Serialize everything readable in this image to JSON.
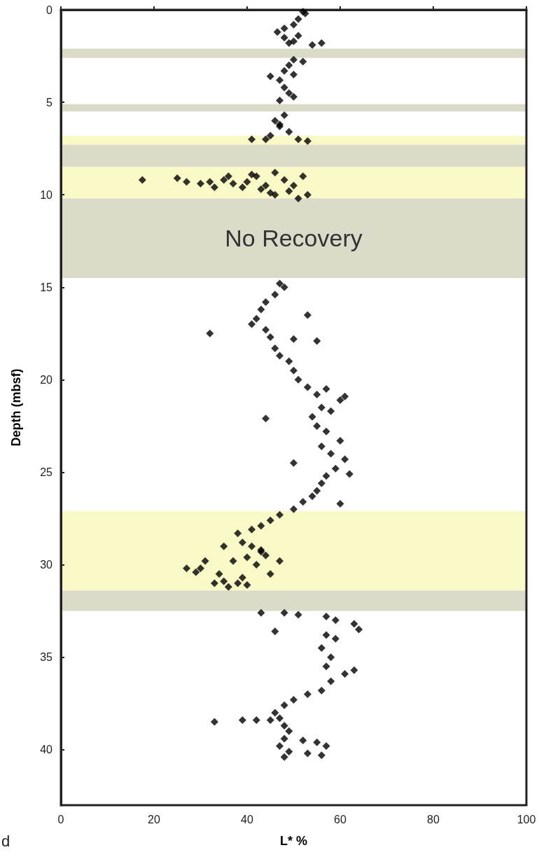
{
  "chart_data": {
    "type": "scatter",
    "xlabel": "L* %",
    "ylabel": "Depth (mbsf)",
    "xlim": [
      0,
      100
    ],
    "xticks": [
      0,
      20,
      40,
      60,
      80,
      100
    ],
    "ylim": [
      43,
      0
    ],
    "yticks": [
      0,
      5,
      10,
      15,
      20,
      25,
      30,
      35,
      40
    ],
    "grid": false,
    "marker": "diamond",
    "annotations": [
      "d"
    ],
    "bands": [
      {
        "axis": "y",
        "from": 2.1,
        "to": 2.6,
        "color": "#dcdac8"
      },
      {
        "axis": "y",
        "from": 5.1,
        "to": 5.5,
        "color": "#dcdac8"
      },
      {
        "axis": "y",
        "from": 6.8,
        "to": 7.3,
        "color": "#fafac8"
      },
      {
        "axis": "y",
        "from": 7.3,
        "to": 8.5,
        "color": "#dcdac8"
      },
      {
        "axis": "y",
        "from": 8.5,
        "to": 10.2,
        "color": "#fafac8"
      },
      {
        "axis": "y",
        "from": 10.2,
        "to": 14.5,
        "color": "#dcdac8",
        "label": "No Recovery"
      },
      {
        "axis": "y",
        "from": 27.1,
        "to": 31.4,
        "color": "#fafac8"
      },
      {
        "axis": "y",
        "from": 31.4,
        "to": 32.5,
        "color": "#dcdac8"
      }
    ],
    "series": [
      {
        "color": "#000000",
        "x": [
          52,
          52.5,
          51,
          50,
          48,
          46.5,
          48,
          50,
          54,
          56,
          51,
          49,
          50,
          49,
          48,
          50,
          45,
          47,
          48,
          49,
          50,
          47,
          52,
          48,
          46,
          47,
          49,
          45,
          44,
          41,
          51,
          53,
          47,
          17.5,
          25,
          27,
          30,
          32,
          35,
          37,
          39,
          40,
          42,
          44,
          46,
          48,
          50,
          49,
          51,
          46,
          43,
          36,
          33,
          41,
          52,
          53,
          45,
          47,
          48,
          46,
          44,
          43,
          42,
          41,
          44,
          32,
          45,
          50,
          53,
          55,
          46,
          47,
          49,
          50,
          51,
          53,
          55,
          57,
          60,
          61,
          56,
          58,
          54,
          44,
          55,
          57,
          60,
          56,
          58,
          61,
          59,
          62,
          57,
          50,
          56,
          55,
          54,
          60,
          52,
          50,
          47,
          45,
          43,
          41,
          38,
          39,
          41,
          43,
          40,
          37,
          35,
          31,
          30,
          27,
          29,
          34,
          35,
          38,
          40,
          36,
          33,
          44,
          47,
          42,
          45,
          39,
          43,
          43,
          48,
          51,
          57,
          59,
          63,
          64,
          57,
          46,
          59,
          56,
          58,
          57,
          63,
          61,
          58,
          56,
          53,
          50,
          48,
          46,
          47,
          45,
          42,
          39,
          33,
          48,
          49,
          48,
          52,
          55,
          57,
          47,
          49,
          53,
          56,
          48
        ],
        "values": [
          0.1,
          0.2,
          0.5,
          0.8,
          1.0,
          1.2,
          1.5,
          1.7,
          1.9,
          1.8,
          1.4,
          1.8,
          2.7,
          3.0,
          3.3,
          3.5,
          3.6,
          3.8,
          4.2,
          4.5,
          4.7,
          4.9,
          2.8,
          5.7,
          6.0,
          6.3,
          6.6,
          6.8,
          7.0,
          7.0,
          7.0,
          7.1,
          6.2,
          9.2,
          9.1,
          9.3,
          9.4,
          9.3,
          9.2,
          9.4,
          9.6,
          9.3,
          9.0,
          9.5,
          8.8,
          9.2,
          9.5,
          9.8,
          10.2,
          10.0,
          9.7,
          9.0,
          9.6,
          8.9,
          9.0,
          10.0,
          9.9,
          14.8,
          15.0,
          15.4,
          15.8,
          16.2,
          16.7,
          17.0,
          17.3,
          17.5,
          17.7,
          17.8,
          16.5,
          17.9,
          18.3,
          18.7,
          19.0,
          19.5,
          20.0,
          20.4,
          20.8,
          20.5,
          21.1,
          20.9,
          21.5,
          21.7,
          22.0,
          22.1,
          22.5,
          22.8,
          23.3,
          23.6,
          24.0,
          24.3,
          24.8,
          25.1,
          25.2,
          24.5,
          25.6,
          26.0,
          26.3,
          26.7,
          26.6,
          27.0,
          27.3,
          27.6,
          27.9,
          28.1,
          28.3,
          28.8,
          29.0,
          29.3,
          29.6,
          29.8,
          29.0,
          29.8,
          30.2,
          30.2,
          30.4,
          30.5,
          30.9,
          31.0,
          31.1,
          31.2,
          31.0,
          29.5,
          29.8,
          30.0,
          30.5,
          30.7,
          29.2,
          32.6,
          32.6,
          32.7,
          32.8,
          33.0,
          33.2,
          33.5,
          33.8,
          33.6,
          34.0,
          34.5,
          35.0,
          35.5,
          35.7,
          35.9,
          36.3,
          36.8,
          37.0,
          37.3,
          37.6,
          38.0,
          38.3,
          38.4,
          38.4,
          38.4,
          38.5,
          38.7,
          39.0,
          39.4,
          39.5,
          39.6,
          39.8,
          39.8,
          40.1,
          40.2,
          40.3,
          40.4
        ]
      }
    ]
  }
}
